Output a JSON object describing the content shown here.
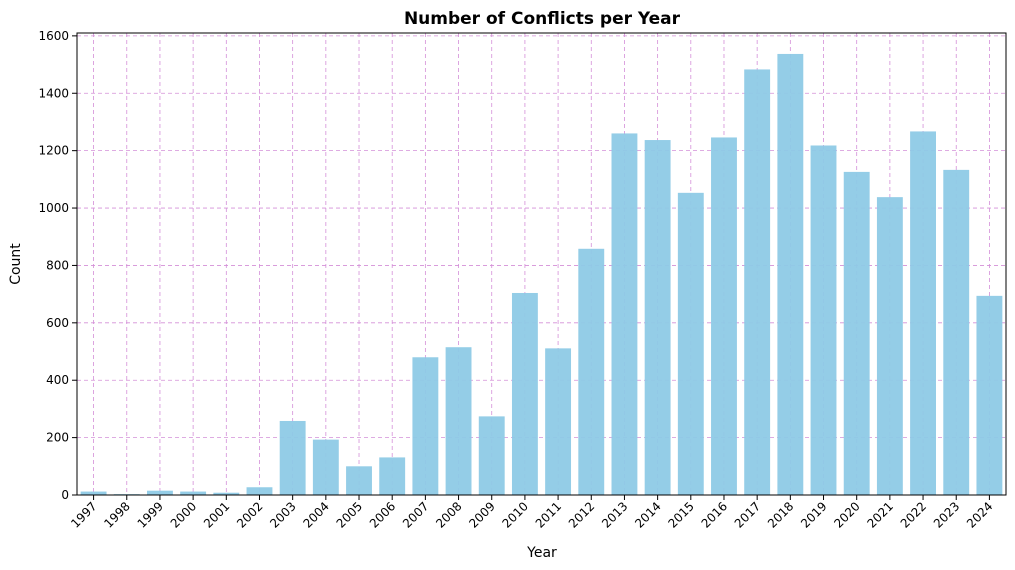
{
  "chart_data": {
    "type": "bar",
    "title": "Number of Conflicts per Year",
    "xlabel": "Year",
    "ylabel": "Count",
    "categories": [
      "1997",
      "1998",
      "1999",
      "2000",
      "2001",
      "2002",
      "2003",
      "2004",
      "2005",
      "2006",
      "2007",
      "2008",
      "2009",
      "2010",
      "2011",
      "2012",
      "2013",
      "2014",
      "2015",
      "2016",
      "2017",
      "2018",
      "2019",
      "2020",
      "2021",
      "2022",
      "2023",
      "2024"
    ],
    "values": [
      12,
      3,
      15,
      12,
      8,
      27,
      258,
      193,
      100,
      131,
      480,
      515,
      274,
      704,
      511,
      858,
      1260,
      1237,
      1053,
      1246,
      1483,
      1537,
      1218,
      1126,
      1038,
      1267,
      1133,
      694
    ],
    "ylim": [
      0,
      1610
    ],
    "yticks": [
      0,
      200,
      400,
      600,
      800,
      1000,
      1200,
      1400,
      1600
    ],
    "grid": true,
    "bar_color": "#8ecae6",
    "grid_color": "#d48fd8"
  }
}
